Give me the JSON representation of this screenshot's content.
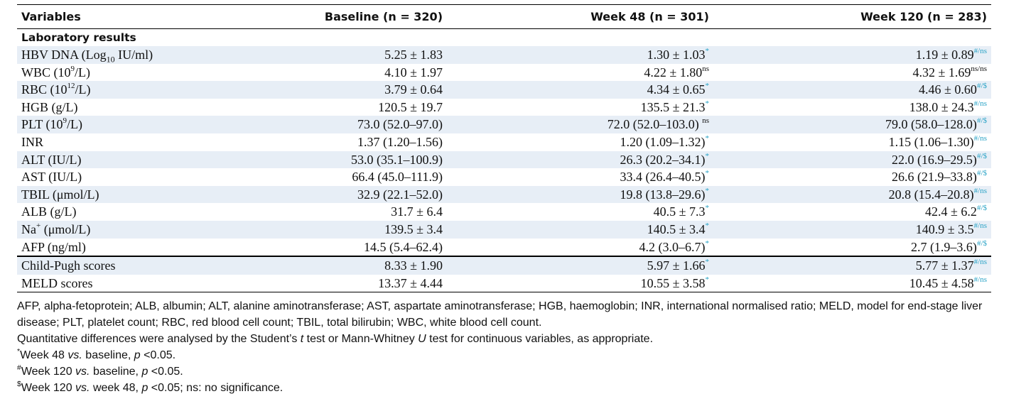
{
  "table": {
    "headers": [
      "Variables",
      "Baseline (n = 320)",
      "Week 48 (n = 301)",
      "Week 120 (n = 283)"
    ],
    "section_label": "Laboratory results",
    "lab_rows": [
      {
        "label": "HBV DNA (Log",
        "label_sub": "10",
        "label_post": " IU/ml)",
        "label_sup": "",
        "baseline": "5.25 ± 1.83",
        "w48": "1.30 ± 1.03",
        "w48_sup": "*",
        "w120": "1.19 ± 0.89",
        "w120_sup": "#/ns"
      },
      {
        "label": "WBC (10",
        "label_sub": "",
        "label_sup": "9",
        "label_post": "/L)",
        "baseline": "4.10 ± 1.97",
        "w48": "4.22 ± 1.80",
        "w48_sup": "ns",
        "w120": "4.32 ± 1.69",
        "w120_sup": "ns/ns"
      },
      {
        "label": "RBC (10",
        "label_sub": "",
        "label_sup": "12",
        "label_post": "/L)",
        "baseline": "3.79 ± 0.64",
        "w48": "4.34 ± 0.65",
        "w48_sup": "*",
        "w120": "4.46 ± 0.60",
        "w120_sup": "#/$"
      },
      {
        "label": "HGB (g/L)",
        "label_sub": "",
        "label_sup": "",
        "label_post": "",
        "baseline": "120.5 ± 19.7",
        "w48": "135.5 ± 21.3",
        "w48_sup": "*",
        "w120": "138.0 ± 24.3",
        "w120_sup": "#/ns"
      },
      {
        "label": "PLT (10",
        "label_sub": "",
        "label_sup": "9",
        "label_post": "/L)",
        "baseline": "73.0 (52.0–97.0)",
        "w48": "72.0 (52.0–103.0) ",
        "w48_sup": "ns",
        "w120": "79.0 (58.0–128.0)",
        "w120_sup": "#/$"
      },
      {
        "label": "INR",
        "label_sub": "",
        "label_sup": "",
        "label_post": "",
        "baseline": "1.37 (1.20–1.56)",
        "w48": "1.20 (1.09–1.32)",
        "w48_sup": "*",
        "w120": "1.15 (1.06–1.30)",
        "w120_sup": "#/ns"
      },
      {
        "label": "ALT (IU/L)",
        "label_sub": "",
        "label_sup": "",
        "label_post": "",
        "baseline": "53.0 (35.1–100.9)",
        "w48": "26.3 (20.2–34.1)",
        "w48_sup": "*",
        "w120": "22.0 (16.9–29.5)",
        "w120_sup": "#/$"
      },
      {
        "label": "AST (IU/L)",
        "label_sub": "",
        "label_sup": "",
        "label_post": "",
        "baseline": "66.4 (45.0–111.9)",
        "w48": "33.4 (26.4–40.5)",
        "w48_sup": "*",
        "w120": "26.6 (21.9–33.8)",
        "w120_sup": "#/$"
      },
      {
        "label": "TBIL (μmol/L)",
        "label_sub": "",
        "label_sup": "",
        "label_post": "",
        "baseline": "32.9 (22.1–52.0)",
        "w48": "19.8 (13.8–29.6)",
        "w48_sup": "*",
        "w120": "20.8 (15.4–20.8)",
        "w120_sup": "#/ns"
      },
      {
        "label": "ALB (g/L)",
        "label_sub": "",
        "label_sup": "",
        "label_post": "",
        "baseline": "31.7 ± 6.4",
        "w48": "40.5 ± 7.3",
        "w48_sup": "*",
        "w120": "42.4 ± 6.2",
        "w120_sup": "#/$"
      },
      {
        "label": "Na",
        "label_sub": "",
        "label_sup": "+",
        "label_post": " (μmol/L)",
        "baseline": "139.5 ± 3.4",
        "w48": "140.5 ± 3.4",
        "w48_sup": "*",
        "w120": "140.9 ± 3.5",
        "w120_sup": "#/ns"
      },
      {
        "label": "AFP (ng/ml)",
        "label_sub": "",
        "label_sup": "",
        "label_post": "",
        "baseline": "14.5 (5.4–62.4)",
        "w48": "4.2 (3.0–6.7)",
        "w48_sup": "*",
        "w120": "2.7 (1.9–3.6)",
        "w120_sup": "#/$"
      }
    ],
    "score_rows": [
      {
        "label": "Child-Pugh scores",
        "baseline": "8.33 ± 1.90",
        "w48": "5.97 ± 1.66",
        "w48_sup": "*",
        "w120": "5.77 ± 1.37",
        "w120_sup": "#/ns"
      },
      {
        "label": "MELD scores",
        "baseline": "13.37 ± 4.44",
        "w48": "10.55 ± 3.58",
        "w48_sup": "*",
        "w120": "10.45 ± 4.58",
        "w120_sup": "#/ns"
      }
    ]
  },
  "footnotes": {
    "abbreviations": "AFP, alpha-fetoprotein; ALB, albumin; ALT, alanine aminotransferase; AST, aspartate aminotransferase; HGB, haemoglobin; INR, international normalised ratio; MELD, model for end-stage liver disease; PLT, platelet count; RBC, red blood cell count; TBIL, total bilirubin; WBC, white blood cell count.",
    "methods_pre": "Quantitative differences were analysed by the Student’s ",
    "methods_t": "t",
    "methods_mid": " test or Mann-Whitney ",
    "methods_u": "U",
    "methods_post": " test for continuous variables, as appropriate.",
    "note1_mark": "*",
    "note1_pre": "Week 48 ",
    "note1_vs": "vs.",
    "note1_mid": " baseline, ",
    "note1_p": "p",
    "note1_post": " <0.05.",
    "note2_mark": "#",
    "note2_pre": "Week 120 ",
    "note2_vs": "vs.",
    "note2_mid": " baseline, ",
    "note2_p": "p",
    "note2_post": " <0.05.",
    "note3_mark": "$",
    "note3_pre": "Week 120 ",
    "note3_vs": "vs.",
    "note3_mid": " week 48, ",
    "note3_p": "p",
    "note3_post": " <0.05; ns: no significance."
  },
  "colors": {
    "significance_marker": "#2aa3c6",
    "row_shade": "#e7eef6"
  }
}
